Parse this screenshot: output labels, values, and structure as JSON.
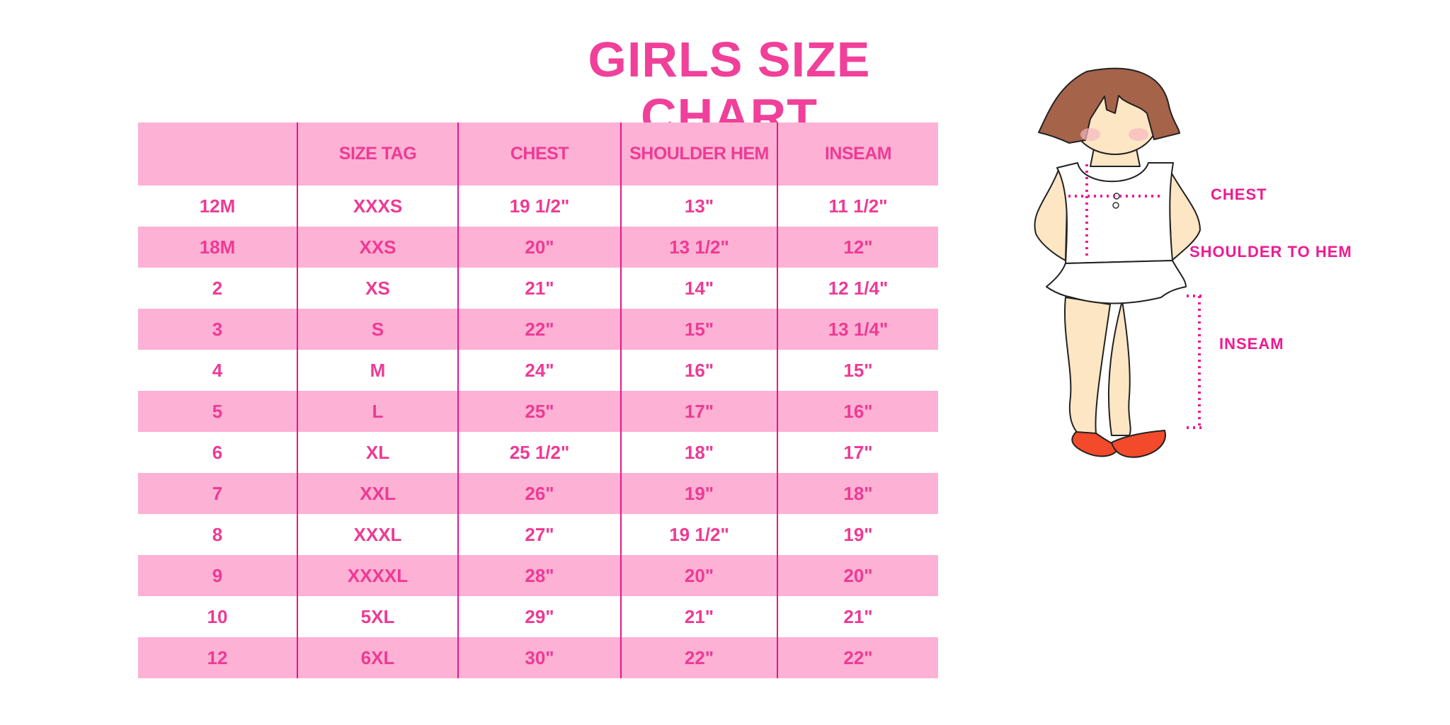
{
  "title": "GIRLS SIZE CHART",
  "table": {
    "headers": [
      "",
      "SIZE TAG",
      "CHEST",
      "SHOULDER HEM",
      "INSEAM"
    ],
    "rows": [
      [
        "12M",
        "XXXS",
        "19 1/2\"",
        "13\"",
        "11 1/2\""
      ],
      [
        "18M",
        "XXS",
        "20\"",
        "13 1/2\"",
        "12\""
      ],
      [
        "2",
        "XS",
        "21\"",
        "14\"",
        "12 1/4\""
      ],
      [
        "3",
        "S",
        "22\"",
        "15\"",
        "13 1/4\""
      ],
      [
        "4",
        "M",
        "24\"",
        "16\"",
        "15\""
      ],
      [
        "5",
        "L",
        "25\"",
        "17\"",
        "16\""
      ],
      [
        "6",
        "XL",
        "25 1/2\"",
        "18\"",
        "17\""
      ],
      [
        "7",
        "XXL",
        "26\"",
        "19\"",
        "18\""
      ],
      [
        "8",
        "XXXL",
        "27\"",
        "19 1/2\"",
        "19\""
      ],
      [
        "9",
        "XXXXL",
        "28\"",
        "20\"",
        "20\""
      ],
      [
        "10",
        "5XL",
        "29\"",
        "21\"",
        "21\""
      ],
      [
        "12",
        "6XL",
        "30\"",
        "22\"",
        "22\""
      ]
    ]
  },
  "illustration": {
    "labels": {
      "chest": "CHEST",
      "shoulder_to_hem": "SHOULDER TO HEM",
      "inseam": "INSEAM"
    }
  },
  "colors": {
    "accent": "#f0409a",
    "row_fill": "#fdb1d4",
    "divider": "#e8168a"
  }
}
